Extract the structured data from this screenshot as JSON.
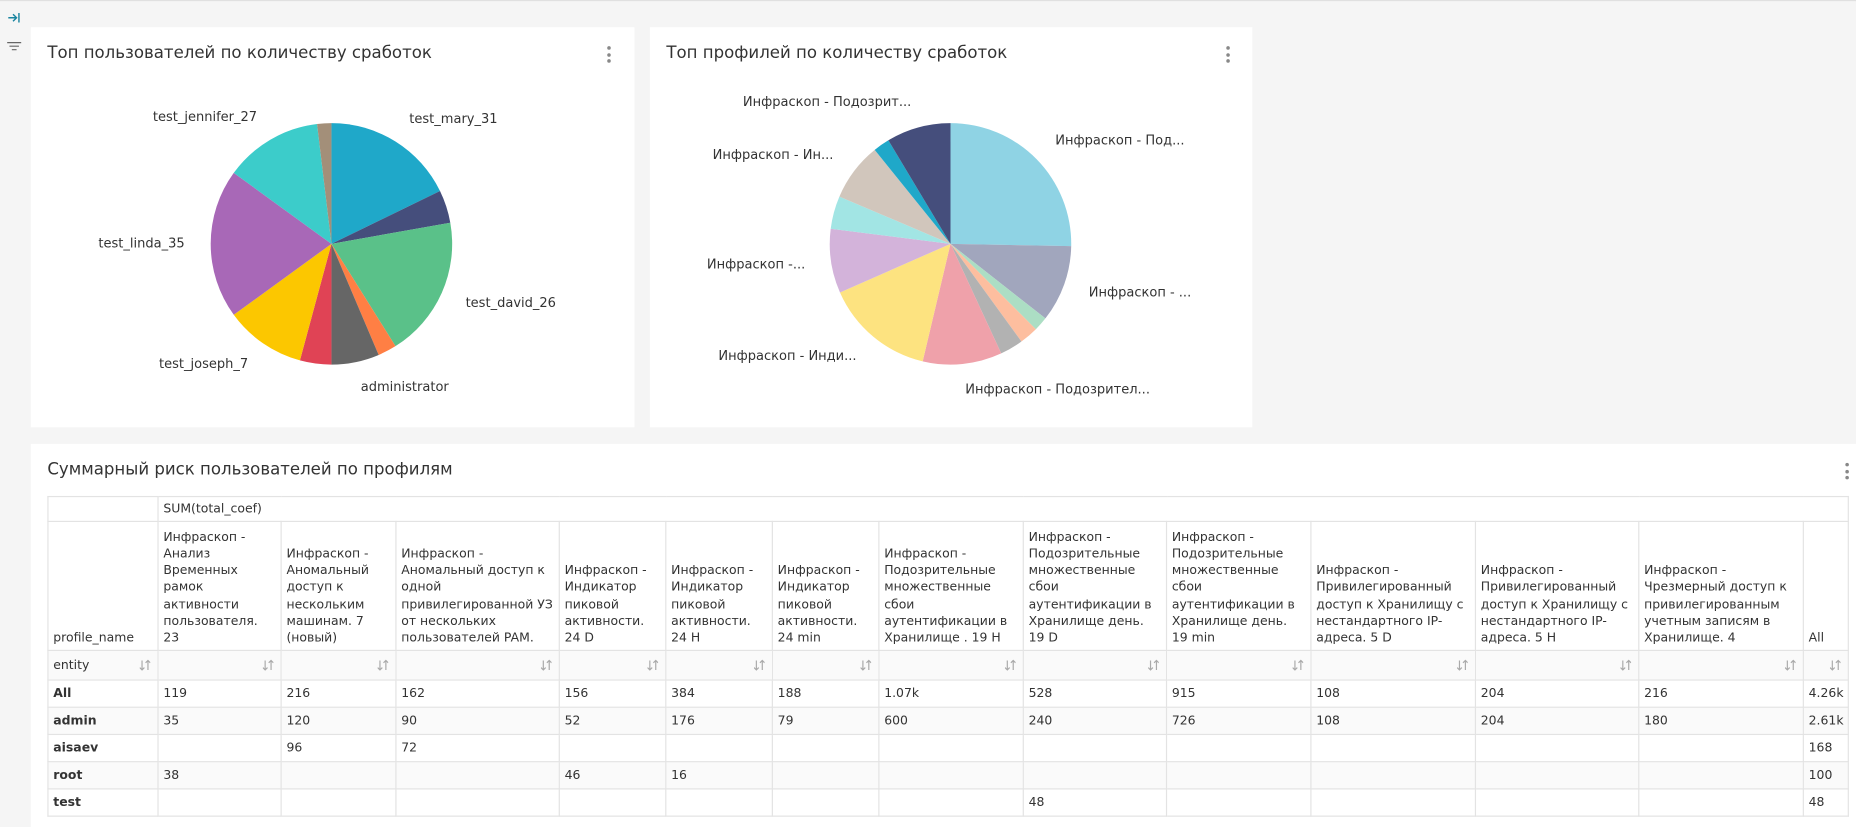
{
  "chart_data": [
    {
      "type": "pie",
      "title": "Топ пользователей по количеству сработок",
      "categories": [
        "test_mary_31",
        null,
        "test_david_26",
        null,
        "administrator",
        null,
        "test_joseph_7",
        "test_linda_35",
        "test_jennifer_27",
        null
      ],
      "values": [
        17.8,
        4.4,
        18.9,
        2.5,
        6.4,
        4.2,
        10.8,
        20,
        13.1,
        1.9
      ],
      "colors": [
        "#1fa8c9",
        "#454e7c",
        "#5ac189",
        "#ff7f44",
        "#666666",
        "#e04355",
        "#fcc700",
        "#a868b7",
        "#3cccca",
        "#a38f79"
      ]
    },
    {
      "type": "pie",
      "title": "Топ профилей по количеству сработок",
      "categories": [
        "Инфраскоп - Под...",
        "Инфраскоп - ...",
        null,
        null,
        null,
        "Инфраскоп - Подозрител...",
        "Инфраскоп - Инди...",
        "Инфраскоп -...",
        null,
        "Инфраскоп - Ин...",
        null,
        "Инфраскоп - Подозрит..."
      ],
      "values": [
        25.3,
        10.3,
        1.9,
        2.5,
        3.1,
        10.6,
        14.7,
        8.6,
        4.4,
        7.8,
        2.2,
        8.6
      ],
      "colors": [
        "#8fd3e4",
        "#a1a6bd",
        "#acdec4",
        "#fdbe9f",
        "#b2b2b2",
        "#efa1aa",
        "#fde380",
        "#d3b3da",
        "#a2e5e4",
        "#d1c6bc",
        "#1fa8c9",
        "#454e7c"
      ]
    }
  ],
  "table": {
    "title": "Суммарный риск пользователей по профилям",
    "group_header": "SUM(total_coef)",
    "row_header": "profile_name",
    "index_name": "entity",
    "columns": [
      "Инфраскоп - Анализ Временных рамок активности пользователя. 23",
      "Инфраскоп - Аномальный доступ к нескольким машинам. 7 (новый)",
      "Инфраскоп - Аномальный доступ к одной привилегированной УЗ от нескольких пользователей PAM.",
      "Инфраскоп - Индикатор пиковой активности. 24 D",
      "Инфраскоп - Индикатор пиковой активности. 24 H",
      "Инфраскоп - Индикатор пиковой активности. 24 min",
      "Инфраскоп - Подозрительные множественные сбои аутентификации в Хранилище . 19 H",
      "Инфраскоп - Подозрительные множественные сбои аутентификации в Хранилище день. 19 D",
      "Инфраскоп - Подозрительные множественные сбои аутентификации в Хранилище день. 19 min",
      "Инфраскоп - Привилегированный доступ к Хранилищу с нестандартного IP-адреса. 5 D",
      "Инфраскоп - Привилегированный доступ к Хранилищу с нестандартного IP-адреса. 5 H",
      "Инфраскоп - Чрезмерный доступ к привилегированным учетным записям в Хранилище. 4",
      "All"
    ],
    "rows": [
      {
        "label": "All",
        "cells": [
          "119",
          "216",
          "162",
          "156",
          "384",
          "188",
          "1.07k",
          "528",
          "915",
          "108",
          "204",
          "216",
          "4.26k"
        ]
      },
      {
        "label": "admin",
        "cells": [
          "35",
          "120",
          "90",
          "52",
          "176",
          "79",
          "600",
          "240",
          "726",
          "108",
          "204",
          "180",
          "2.61k"
        ]
      },
      {
        "label": "aisaev",
        "cells": [
          null,
          "96",
          "72",
          null,
          null,
          null,
          null,
          null,
          null,
          null,
          null,
          null,
          "168"
        ]
      },
      {
        "label": "root",
        "cells": [
          "38",
          null,
          null,
          "46",
          "16",
          null,
          null,
          null,
          null,
          null,
          null,
          null,
          "100"
        ]
      },
      {
        "label": "test",
        "cells": [
          null,
          null,
          null,
          null,
          null,
          null,
          null,
          "48",
          null,
          null,
          null,
          null,
          "48"
        ]
      }
    ]
  }
}
